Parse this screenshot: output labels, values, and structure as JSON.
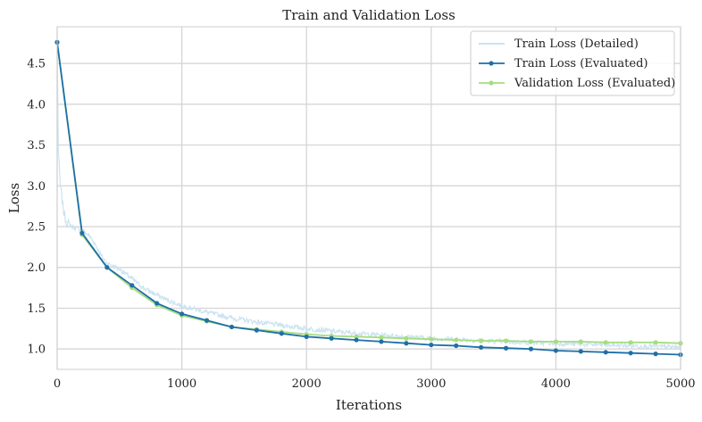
{
  "chart_data": {
    "type": "line",
    "title": "Train and Validation Loss",
    "xlabel": "Iterations",
    "ylabel": "Loss",
    "xlim": [
      0,
      5000
    ],
    "ylim": [
      0.75,
      4.95
    ],
    "x_ticks": [
      0,
      1000,
      2000,
      3000,
      4000,
      5000
    ],
    "y_ticks": [
      1.0,
      1.5,
      2.0,
      2.5,
      3.0,
      3.5,
      4.0,
      4.5
    ],
    "grid": true,
    "legend_position": "top-right",
    "colors": {
      "detailed": "#c9e2f0",
      "train": "#1f6fa8",
      "validation": "#a6dd80",
      "grid": "#d3d3d3",
      "frame": "#cccccc"
    },
    "series": [
      {
        "name": "Train Loss (Detailed)",
        "style": "noisy-line",
        "x": [
          0,
          10,
          25,
          50,
          75,
          100,
          150,
          200,
          250,
          300,
          350,
          400,
          500,
          600,
          700,
          800,
          900,
          1000,
          1200,
          1400,
          1600,
          1800,
          2000,
          2200,
          2400,
          2600,
          2800,
          3000,
          3200,
          3400,
          3600,
          3800,
          4000,
          4200,
          4400,
          4600,
          4800,
          5000
        ],
        "values": [
          4.75,
          3.4,
          3.0,
          2.7,
          2.55,
          2.52,
          2.48,
          2.45,
          2.4,
          2.3,
          2.15,
          2.05,
          1.98,
          1.86,
          1.74,
          1.66,
          1.59,
          1.53,
          1.45,
          1.38,
          1.33,
          1.29,
          1.25,
          1.22,
          1.19,
          1.17,
          1.15,
          1.13,
          1.12,
          1.1,
          1.09,
          1.08,
          1.07,
          1.06,
          1.05,
          1.04,
          1.03,
          1.02
        ]
      },
      {
        "name": "Train Loss (Evaluated)",
        "style": "line-markers",
        "x": [
          0,
          200,
          400,
          600,
          800,
          1000,
          1200,
          1400,
          1600,
          1800,
          2000,
          2200,
          2400,
          2600,
          2800,
          3000,
          3200,
          3400,
          3600,
          3800,
          4000,
          4200,
          4400,
          4600,
          4800,
          5000
        ],
        "values": [
          4.76,
          2.42,
          2.0,
          1.78,
          1.56,
          1.43,
          1.35,
          1.27,
          1.23,
          1.19,
          1.15,
          1.13,
          1.11,
          1.09,
          1.07,
          1.05,
          1.04,
          1.02,
          1.01,
          1.0,
          0.98,
          0.97,
          0.96,
          0.95,
          0.94,
          0.93
        ]
      },
      {
        "name": "Validation Loss (Evaluated)",
        "style": "line-markers",
        "x": [
          0,
          200,
          400,
          600,
          800,
          1000,
          1200,
          1400,
          1600,
          1800,
          2000,
          2200,
          2400,
          2600,
          2800,
          3000,
          3200,
          3400,
          3600,
          3800,
          4000,
          4200,
          4400,
          4600,
          4800,
          5000
        ],
        "values": [
          4.76,
          2.4,
          2.0,
          1.75,
          1.54,
          1.41,
          1.34,
          1.27,
          1.24,
          1.21,
          1.18,
          1.16,
          1.15,
          1.14,
          1.13,
          1.12,
          1.11,
          1.1,
          1.1,
          1.09,
          1.09,
          1.09,
          1.08,
          1.08,
          1.08,
          1.07
        ]
      }
    ]
  }
}
